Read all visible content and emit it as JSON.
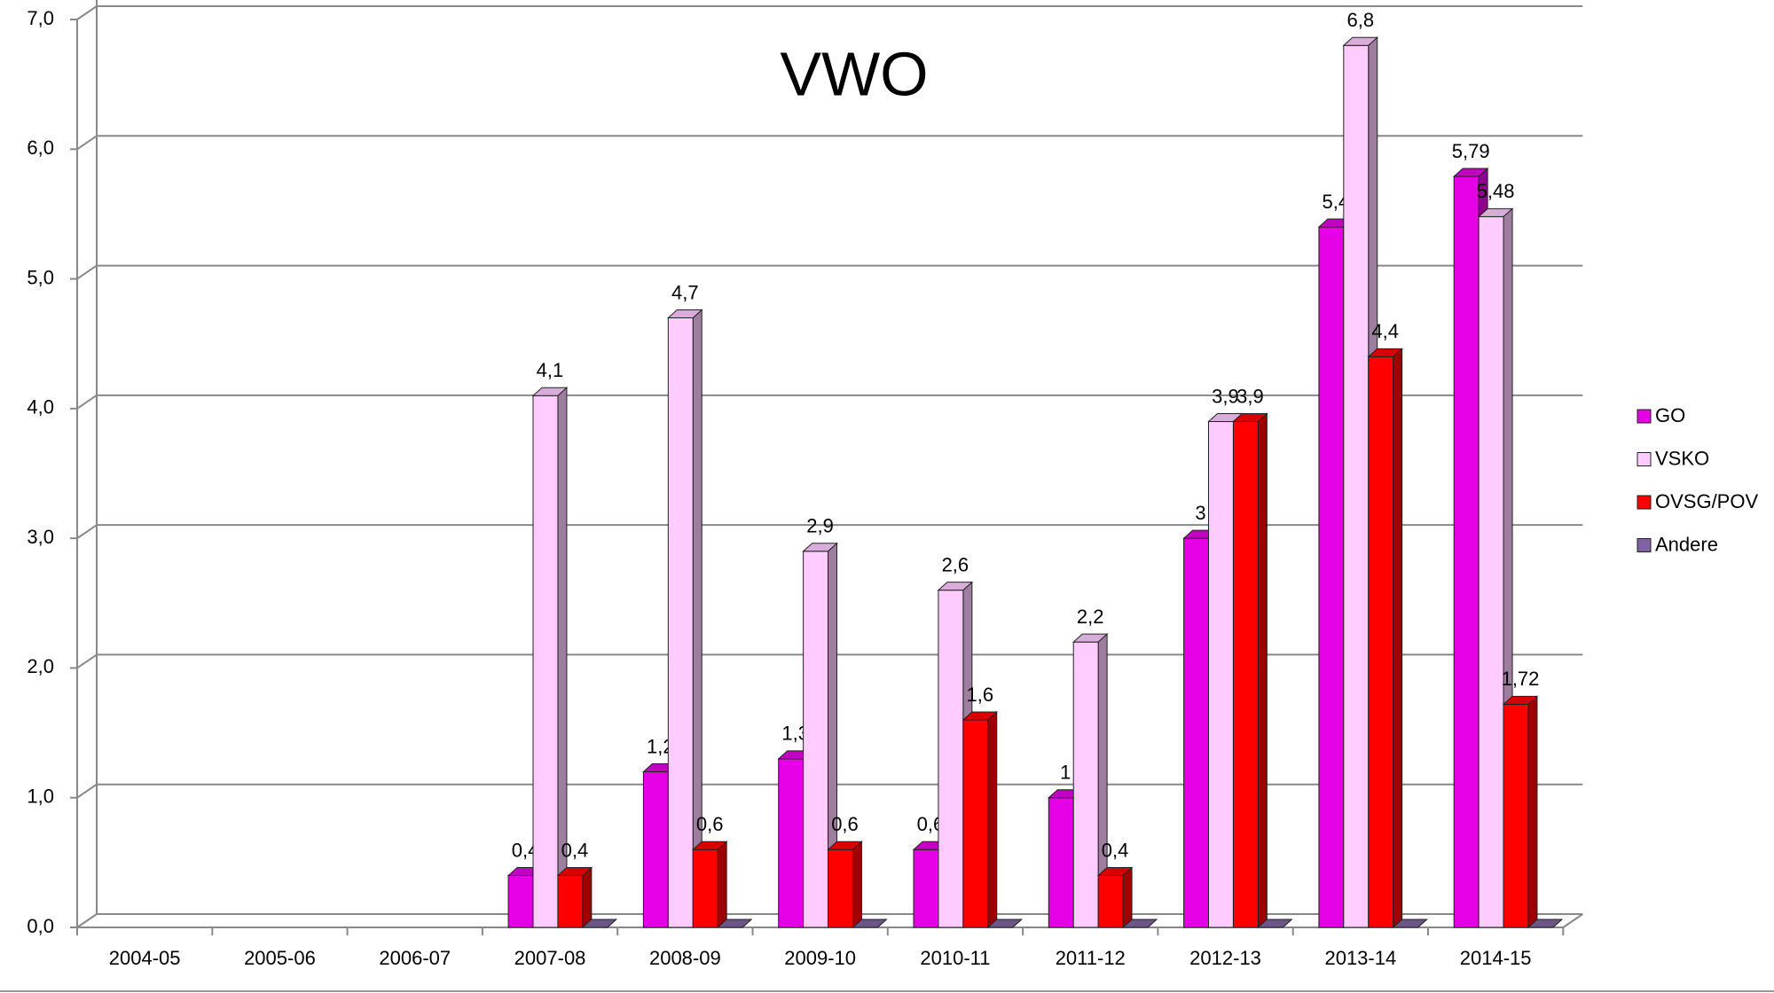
{
  "chart_data": {
    "type": "bar3d",
    "title": "VWO",
    "categories": [
      "2004-05",
      "2005-06",
      "2006-07",
      "2007-08",
      "2008-09",
      "2009-10",
      "2010-11",
      "2011-12",
      "2012-13",
      "2013-14",
      "2014-15"
    ],
    "series": [
      {
        "name": "GO",
        "color": "#e600e6",
        "values": [
          null,
          null,
          null,
          0.4,
          1.2,
          1.3,
          0.6,
          1,
          3,
          5.4,
          5.79
        ],
        "value_labels": [
          null,
          null,
          null,
          "0,4",
          "1,2",
          "1,3",
          "0,6",
          "1",
          "3",
          "5,4",
          "5,79"
        ]
      },
      {
        "name": "VSKO",
        "color": "#ffccff",
        "values": [
          null,
          null,
          null,
          4.1,
          4.7,
          2.9,
          2.6,
          2.2,
          3.9,
          6.8,
          5.48
        ],
        "value_labels": [
          null,
          null,
          null,
          "4,1",
          "4,7",
          "2,9",
          "2,6",
          "2,2",
          "3,9",
          "6,8",
          "5,48"
        ]
      },
      {
        "name": "OVSG/POV",
        "color": "#ff0000",
        "values": [
          null,
          null,
          null,
          0.4,
          0.6,
          0.6,
          1.6,
          0.4,
          3.9,
          4.4,
          1.72
        ],
        "value_labels": [
          null,
          null,
          null,
          "0,4",
          "0,6",
          "0,6",
          "1,6",
          "0,4",
          "3,9",
          "4,4",
          "1,72"
        ]
      },
      {
        "name": "Andere",
        "color": "#8064a2",
        "values": [
          null,
          null,
          null,
          0,
          0,
          0,
          0,
          0,
          0,
          0,
          0
        ]
      }
    ],
    "ylim": [
      0,
      7
    ],
    "yticks": [
      {
        "value": 0,
        "label": "0,0"
      },
      {
        "value": 1,
        "label": "1,0"
      },
      {
        "value": 2,
        "label": "2,0"
      },
      {
        "value": 3,
        "label": "3,0"
      },
      {
        "value": 4,
        "label": "4,0"
      },
      {
        "value": 5,
        "label": "5,0"
      },
      {
        "value": 6,
        "label": "6,0"
      },
      {
        "value": 7,
        "label": "7,0"
      }
    ],
    "grid": true,
    "legend": "right"
  }
}
